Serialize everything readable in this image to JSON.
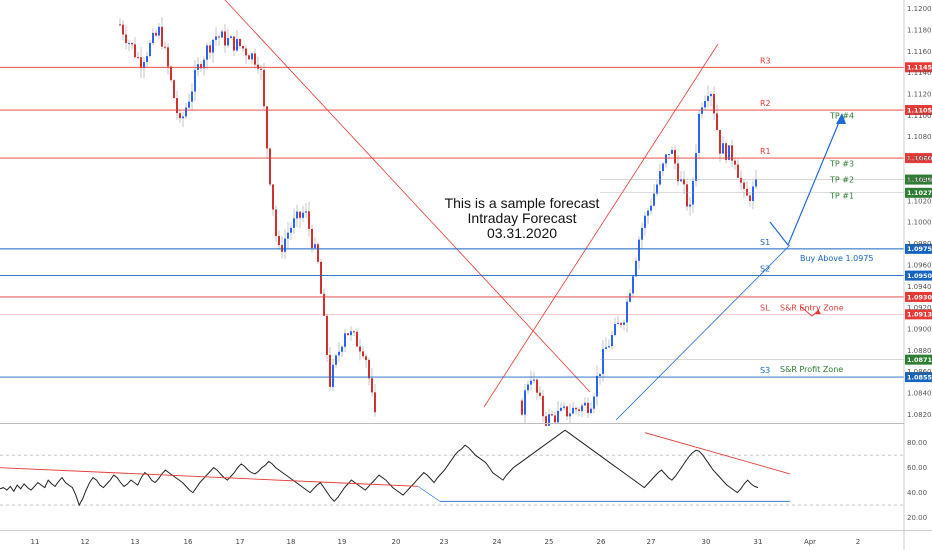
{
  "chart_data": {
    "type": "candlestick",
    "title_lines": [
      "This is a sample forecast",
      "Intraday Forecast",
      "03.31.2020"
    ],
    "colors": {
      "up": "#2962ff",
      "down": "#d32f2f",
      "resistance": "#e53935",
      "support": "#1565c0",
      "take_profit": "#2e7d32",
      "oscillator": "#222222"
    },
    "x_ticks": [
      "11",
      "12",
      "13",
      "16",
      "17",
      "18",
      "19",
      "20",
      "23",
      "24",
      "25",
      "26",
      "27",
      "30",
      "31",
      "Apr",
      "2"
    ],
    "price_axis": {
      "range": [
        1.0812,
        1.1208
      ],
      "ticks": [
        "1.12000",
        "1.11800",
        "1.11600",
        "1.11400",
        "1.11200",
        "1.11000",
        "1.10800",
        "1.10600",
        "1.10400",
        "1.10200",
        "1.10000",
        "1.09800",
        "1.09600",
        "1.09400",
        "1.09200",
        "1.09000",
        "1.08800",
        "1.08600",
        "1.08400",
        "1.08200"
      ]
    },
    "levels": [
      {
        "label": "R3",
        "value": 1.1145,
        "tag": "1.11450",
        "kind": "resistance"
      },
      {
        "label": "R2",
        "value": 1.1105,
        "tag": "1.11050",
        "kind": "resistance"
      },
      {
        "label": "R1",
        "value": 1.106,
        "tag": "1.10600",
        "kind": "resistance"
      },
      {
        "label": "S1",
        "value": 1.0975,
        "tag": "1.09750",
        "kind": "support"
      },
      {
        "label": "S2",
        "value": 1.095,
        "tag": "1.09500",
        "kind": "support"
      },
      {
        "label": "",
        "value": 1.093,
        "tag": "1.09300",
        "kind": "resistance"
      },
      {
        "label": "SL",
        "value": 1.09137,
        "tag": "1.09137",
        "kind": "resistance"
      },
      {
        "label": "S3",
        "value": 1.0855,
        "tag": "1.08550",
        "kind": "support"
      }
    ],
    "extra_tags": [
      {
        "value": 1.10399,
        "tag": "1.10399",
        "kind": "take_profit"
      },
      {
        "value": 1.10275,
        "tag": "1.10275",
        "kind": "take_profit"
      },
      {
        "value": 1.08713,
        "tag": "1.08713",
        "kind": "take_profit"
      }
    ],
    "targets": [
      {
        "label": "TP #4",
        "value": 1.11
      },
      {
        "label": "TP #3",
        "value": 1.1055
      },
      {
        "label": "TP #2",
        "value": 1.104
      },
      {
        "label": "TP #1",
        "value": 1.1025
      }
    ],
    "annotations": {
      "buy": "Buy Above 1.0975",
      "entry": "S&R Entry Zone",
      "profit": "S&R Profit Zone"
    },
    "oscillator": {
      "ticks": [
        "80.00",
        "60.00",
        "40.00",
        "20.00"
      ],
      "range": [
        10,
        95
      ],
      "dashed_levels": [
        70,
        30
      ],
      "values": [
        43,
        44,
        42,
        45,
        41,
        46,
        43,
        47,
        44,
        42,
        45,
        48,
        46,
        44,
        50,
        47,
        45,
        49,
        52,
        48,
        46,
        44,
        38,
        30,
        35,
        42,
        48,
        52,
        50,
        46,
        44,
        47,
        50,
        54,
        52,
        48,
        45,
        47,
        50,
        48,
        46,
        52,
        56,
        54,
        50,
        48,
        51,
        55,
        58,
        56,
        54,
        52,
        50,
        48,
        45,
        42,
        40,
        44,
        48,
        51,
        54,
        57,
        60,
        58,
        55,
        52,
        50,
        53,
        56,
        60,
        63,
        61,
        58,
        56,
        55,
        57,
        60,
        62,
        65,
        63,
        60,
        58,
        56,
        54,
        52,
        50,
        48,
        46,
        44,
        42,
        40,
        43,
        46,
        48,
        44,
        40,
        36,
        33,
        36,
        40,
        44,
        47,
        50,
        48,
        46,
        44,
        42,
        45,
        48,
        51,
        54,
        52,
        50,
        47,
        44,
        42,
        40,
        38,
        41,
        44,
        47,
        50,
        53,
        56,
        54,
        51,
        48,
        52,
        55,
        58,
        62,
        66,
        70,
        73,
        75,
        78,
        76,
        73,
        70,
        68,
        66,
        64,
        60,
        56,
        54,
        52,
        50,
        54,
        57,
        60,
        62,
        64,
        66,
        68,
        70,
        72,
        74,
        76,
        78,
        80,
        82,
        84,
        86,
        88,
        90,
        88,
        86,
        84,
        82,
        80,
        78,
        76,
        74,
        72,
        70,
        68,
        66,
        64,
        62,
        60,
        58,
        56,
        54,
        52,
        50,
        48,
        46,
        44,
        47,
        50,
        53,
        56,
        58,
        55,
        52,
        50,
        53,
        57,
        61,
        65,
        69,
        72,
        74,
        73,
        70,
        66,
        62,
        58,
        55,
        52,
        49,
        46,
        44,
        42,
        40,
        43,
        47,
        50,
        47,
        45,
        44
      ]
    }
  }
}
